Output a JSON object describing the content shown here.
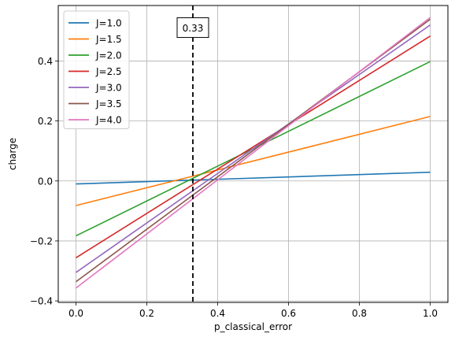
{
  "chart_data": {
    "type": "line",
    "xlabel": "p_classical_error",
    "ylabel": "charge",
    "xlim": [
      -0.05,
      1.05
    ],
    "ylim": [
      -0.405,
      0.585
    ],
    "xticks": [
      0.0,
      0.2,
      0.4,
      0.6,
      0.8,
      1.0
    ],
    "xtick_labels": [
      "0.0",
      "0.2",
      "0.4",
      "0.6",
      "0.8",
      "1.0"
    ],
    "yticks": [
      -0.4,
      -0.2,
      0.0,
      0.2,
      0.4
    ],
    "ytick_labels": [
      "−0.4",
      "−0.2",
      "0.0",
      "0.2",
      "0.4"
    ],
    "grid": true,
    "legend_position": "top-left",
    "vline": {
      "x": 0.33,
      "style": "dashed",
      "color": "#000000"
    },
    "annotation": {
      "text": "0.33",
      "x": 0.33,
      "y": 0.51
    },
    "series": [
      {
        "name": "J=1.0",
        "color": "#1f77b4",
        "x": [
          0.0,
          1.0
        ],
        "y": [
          -0.01,
          0.029
        ]
      },
      {
        "name": "J=1.5",
        "color": "#ff7f0e",
        "x": [
          0.0,
          1.0
        ],
        "y": [
          -0.082,
          0.215
        ]
      },
      {
        "name": "J=2.0",
        "color": "#2ca02c",
        "x": [
          0.0,
          1.0
        ],
        "y": [
          -0.183,
          0.398
        ]
      },
      {
        "name": "J=2.5",
        "color": "#d62728",
        "x": [
          0.0,
          1.0
        ],
        "y": [
          -0.256,
          0.483
        ]
      },
      {
        "name": "J=3.0",
        "color": "#9467bd",
        "x": [
          0.0,
          1.0
        ],
        "y": [
          -0.305,
          0.52
        ]
      },
      {
        "name": "J=3.5",
        "color": "#8c564b",
        "x": [
          0.0,
          1.0
        ],
        "y": [
          -0.336,
          0.539
        ]
      },
      {
        "name": "J=4.0",
        "color": "#e377c2",
        "x": [
          0.0,
          1.0
        ],
        "y": [
          -0.357,
          0.545
        ]
      }
    ]
  }
}
